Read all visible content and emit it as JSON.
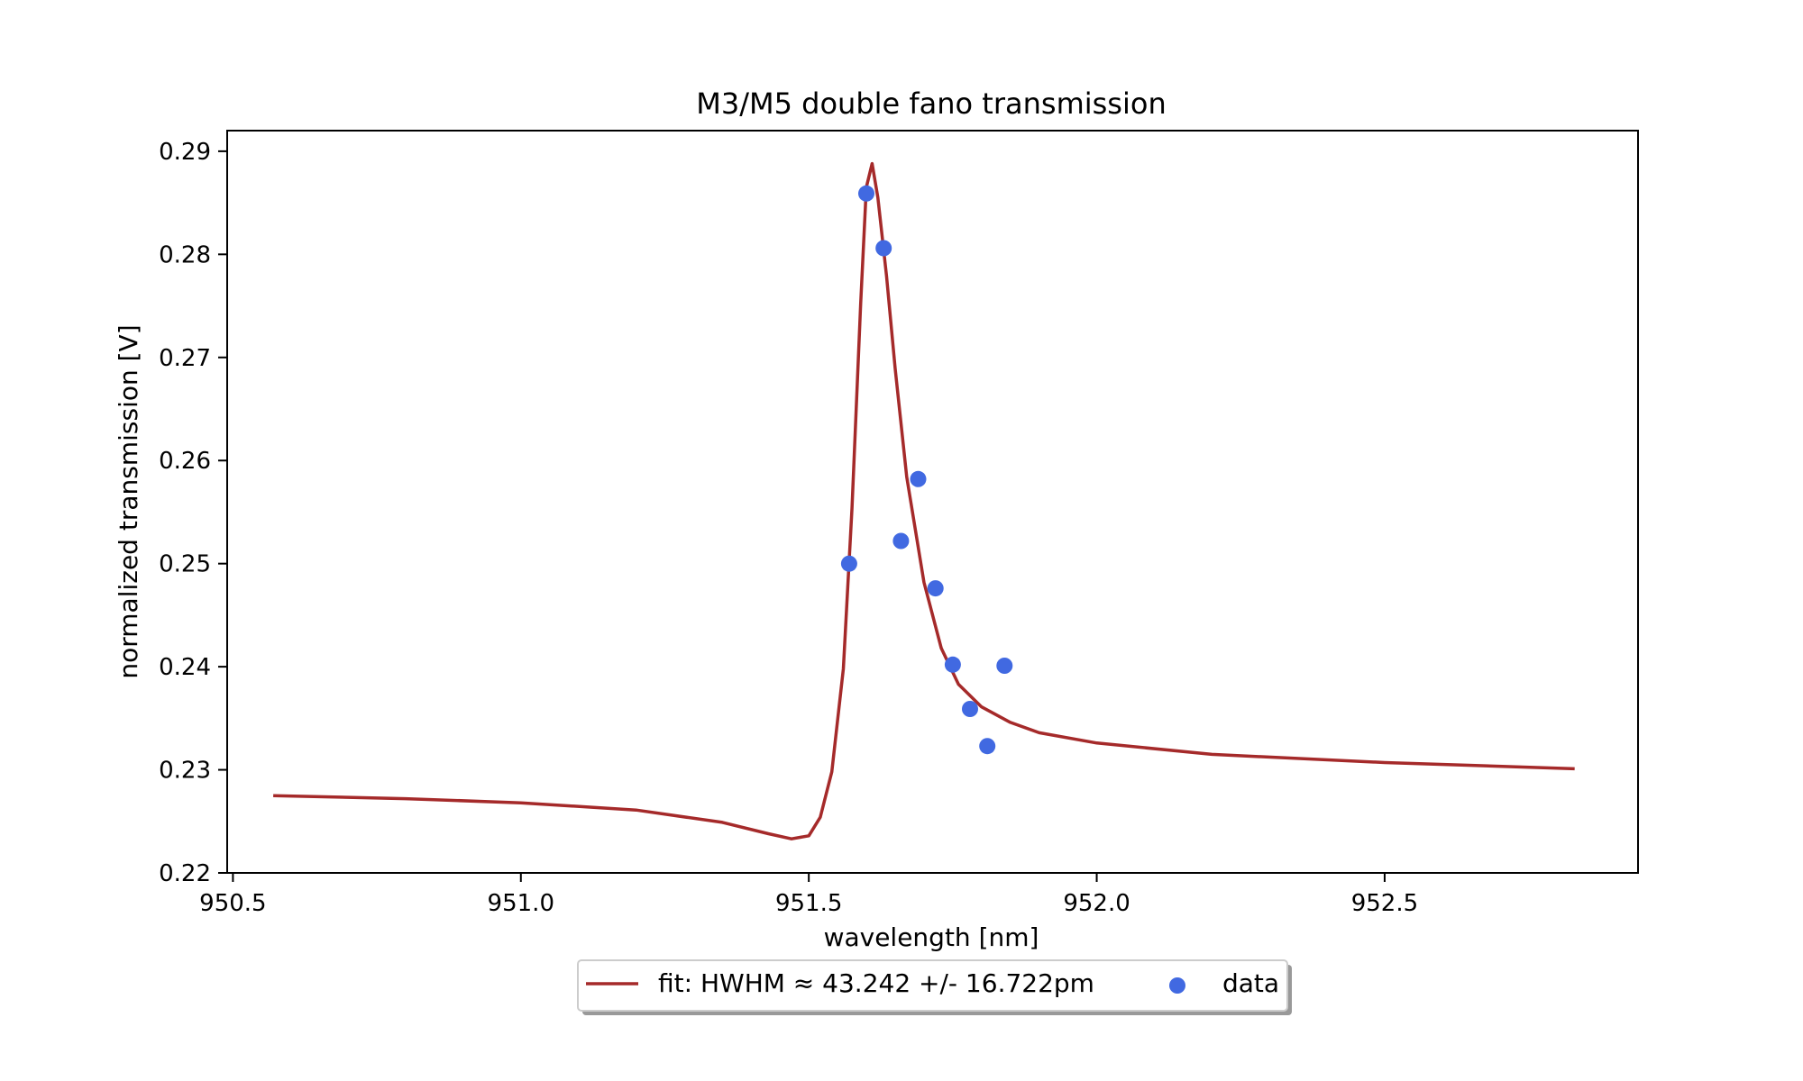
{
  "chart_data": {
    "type": "scatter",
    "title": "M3/M5 double fano transmission",
    "xlabel": "wavelength [nm]",
    "ylabel": "normalized transmission [V]",
    "xlim": [
      950.49,
      952.94
    ],
    "ylim": [
      0.22,
      0.292
    ],
    "xticks": [
      950.5,
      951.0,
      951.5,
      952.0,
      952.5
    ],
    "xtick_labels": [
      "950.5",
      "951.0",
      "951.5",
      "952.0",
      "952.5"
    ],
    "yticks": [
      0.22,
      0.23,
      0.24,
      0.25,
      0.26,
      0.27,
      0.28,
      0.29
    ],
    "ytick_labels": [
      "0.22",
      "0.23",
      "0.24",
      "0.25",
      "0.26",
      "0.27",
      "0.28",
      "0.29"
    ],
    "grid": false,
    "legend_position": "bottom-center",
    "series": [
      {
        "name": "fit: HWHM ≈ 43.242 +/- 16.722pm",
        "kind": "line",
        "color": "#a52a2a",
        "x": [
          950.57,
          950.8,
          951.0,
          951.2,
          951.35,
          951.43,
          951.47,
          951.5,
          951.52,
          951.54,
          951.56,
          951.575,
          951.59,
          951.6,
          951.61,
          951.62,
          951.635,
          951.65,
          951.67,
          951.7,
          951.73,
          951.76,
          951.8,
          951.85,
          951.9,
          952.0,
          952.2,
          952.5,
          952.83
        ],
        "y": [
          0.2275,
          0.2272,
          0.2268,
          0.2261,
          0.2249,
          0.2238,
          0.2233,
          0.2236,
          0.2254,
          0.2298,
          0.2398,
          0.2554,
          0.2752,
          0.2865,
          0.2888,
          0.2855,
          0.2779,
          0.2689,
          0.2584,
          0.2482,
          0.2418,
          0.2383,
          0.2361,
          0.2346,
          0.2336,
          0.2326,
          0.2315,
          0.2307,
          0.2301
        ]
      },
      {
        "name": "data",
        "kind": "scatter",
        "color": "#4169e1",
        "x": [
          951.57,
          951.6,
          951.63,
          951.66,
          951.69,
          951.72,
          951.75,
          951.78,
          951.81,
          951.84
        ],
        "y": [
          0.25,
          0.2859,
          0.2806,
          0.2522,
          0.2582,
          0.2476,
          0.2402,
          0.2359,
          0.2323,
          0.2401
        ]
      }
    ]
  }
}
